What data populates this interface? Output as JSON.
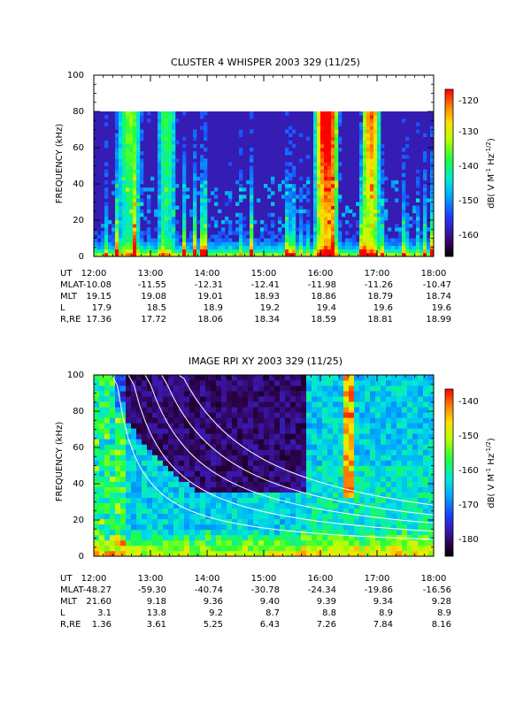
{
  "chart_data": [
    {
      "type": "heatmap",
      "title": "CLUSTER 4 WHISPER 2003 329 (11/25)",
      "ylabel": "FREQUENCY (kHz)",
      "ylim": [
        0,
        100
      ],
      "y_ticks": [
        "0",
        "20",
        "40",
        "60",
        "80",
        "100"
      ],
      "xlim": [
        "12:00",
        "18:00"
      ],
      "data_ylim": [
        0,
        80
      ],
      "colorbar": {
        "label": "dB( V M⁻¹ Hz⁻¹ᐟ² )",
        "label_parts": [
          "dB( V M",
          "-1",
          " Hz",
          "-1/2",
          ")"
        ],
        "range": [
          -166,
          -118
        ],
        "ticks": [
          "-120",
          "-130",
          "-140",
          "-150",
          "-160"
        ]
      },
      "ephemeris_labels": [
        "UT",
        "MLAT",
        "MLT",
        "L",
        "R,RE"
      ],
      "ephemeris": [
        [
          "12:00",
          "-10.08",
          "19.15",
          "17.9",
          "17.36"
        ],
        [
          "13:00",
          "-11.55",
          "19.08",
          "18.5",
          "17.72"
        ],
        [
          "14:00",
          "-12.31",
          "19.01",
          "18.9",
          "18.06"
        ],
        [
          "15:00",
          "-12.41",
          "18.93",
          "19.2",
          "18.34"
        ],
        [
          "16:00",
          "-11.98",
          "18.86",
          "19.4",
          "18.59"
        ],
        [
          "17:00",
          "-11.26",
          "18.79",
          "19.6",
          "18.81"
        ],
        [
          "18:00",
          "-10.47",
          "18.74",
          "19.6",
          "18.99"
        ]
      ]
    },
    {
      "type": "heatmap",
      "title": "IMAGE RPI XY 2003 329 (11/25)",
      "ylabel": "FREQUENCY (kHz)",
      "ylim": [
        0,
        100
      ],
      "y_ticks": [
        "0",
        "20",
        "40",
        "60",
        "80",
        "100"
      ],
      "xlim": [
        "12:00",
        "18:00"
      ],
      "data_ylim": [
        0,
        100
      ],
      "colorbar": {
        "label": "dB( V M⁻¹ Hz⁻¹ᐟ² )",
        "label_parts": [
          "dB( V M",
          "-1",
          " Hz",
          "-1/2",
          ")"
        ],
        "range": [
          -186,
          -134
        ],
        "ticks": [
          "-140",
          "-150",
          "-160",
          "-170",
          "-180"
        ]
      },
      "ephemeris_labels": [
        "UT",
        "MLAT",
        "MLT",
        "L",
        "R,RE"
      ],
      "ephemeris": [
        [
          "12:00",
          "-48.27",
          "21.60",
          "3.1",
          "1.36"
        ],
        [
          "13:00",
          "-59.30",
          "9.18",
          "13.8",
          "3.61"
        ],
        [
          "14:00",
          "-40.74",
          "9.36",
          "9.2",
          "5.25"
        ],
        [
          "15:00",
          "-30.78",
          "9.40",
          "8.7",
          "6.43"
        ],
        [
          "16:00",
          "-24.34",
          "9.39",
          "8.8",
          "7.26"
        ],
        [
          "17:00",
          "-19.86",
          "9.34",
          "8.9",
          "7.84"
        ],
        [
          "18:00",
          "-16.56",
          "9.28",
          "8.9",
          "8.16"
        ]
      ]
    }
  ]
}
